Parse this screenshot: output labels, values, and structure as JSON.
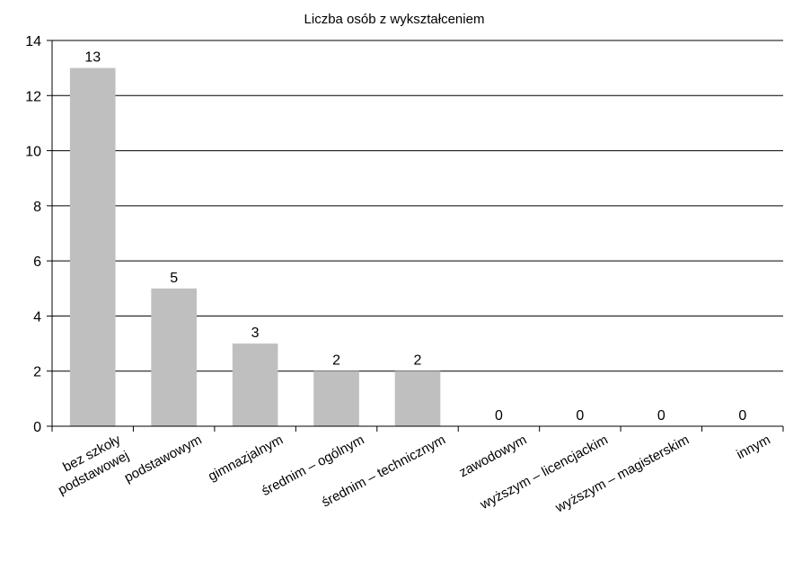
{
  "chart_data": {
    "type": "bar",
    "title": "Liczba osób z wykształceniem",
    "xlabel": "",
    "ylabel": "",
    "categories": [
      [
        "bez szkoły",
        "podstawowej"
      ],
      [
        "podstawowym"
      ],
      [
        "gimnazjalnym"
      ],
      [
        "średnim – ogólnym"
      ],
      [
        "średnim – technicznym"
      ],
      [
        "zawodowym"
      ],
      [
        "wyższym – licencjackim"
      ],
      [
        "wyższym – magisterskim"
      ],
      [
        "innym"
      ]
    ],
    "values": [
      13,
      5,
      3,
      2,
      2,
      0,
      0,
      0,
      0
    ],
    "ylim": [
      0,
      14
    ],
    "yticks": [
      0,
      2,
      4,
      6,
      8,
      10,
      12,
      14
    ],
    "grid": true,
    "legend": "none",
    "colors": {
      "bar": "#bfbfbf",
      "grid": "#000000",
      "axis": "#000000"
    }
  }
}
